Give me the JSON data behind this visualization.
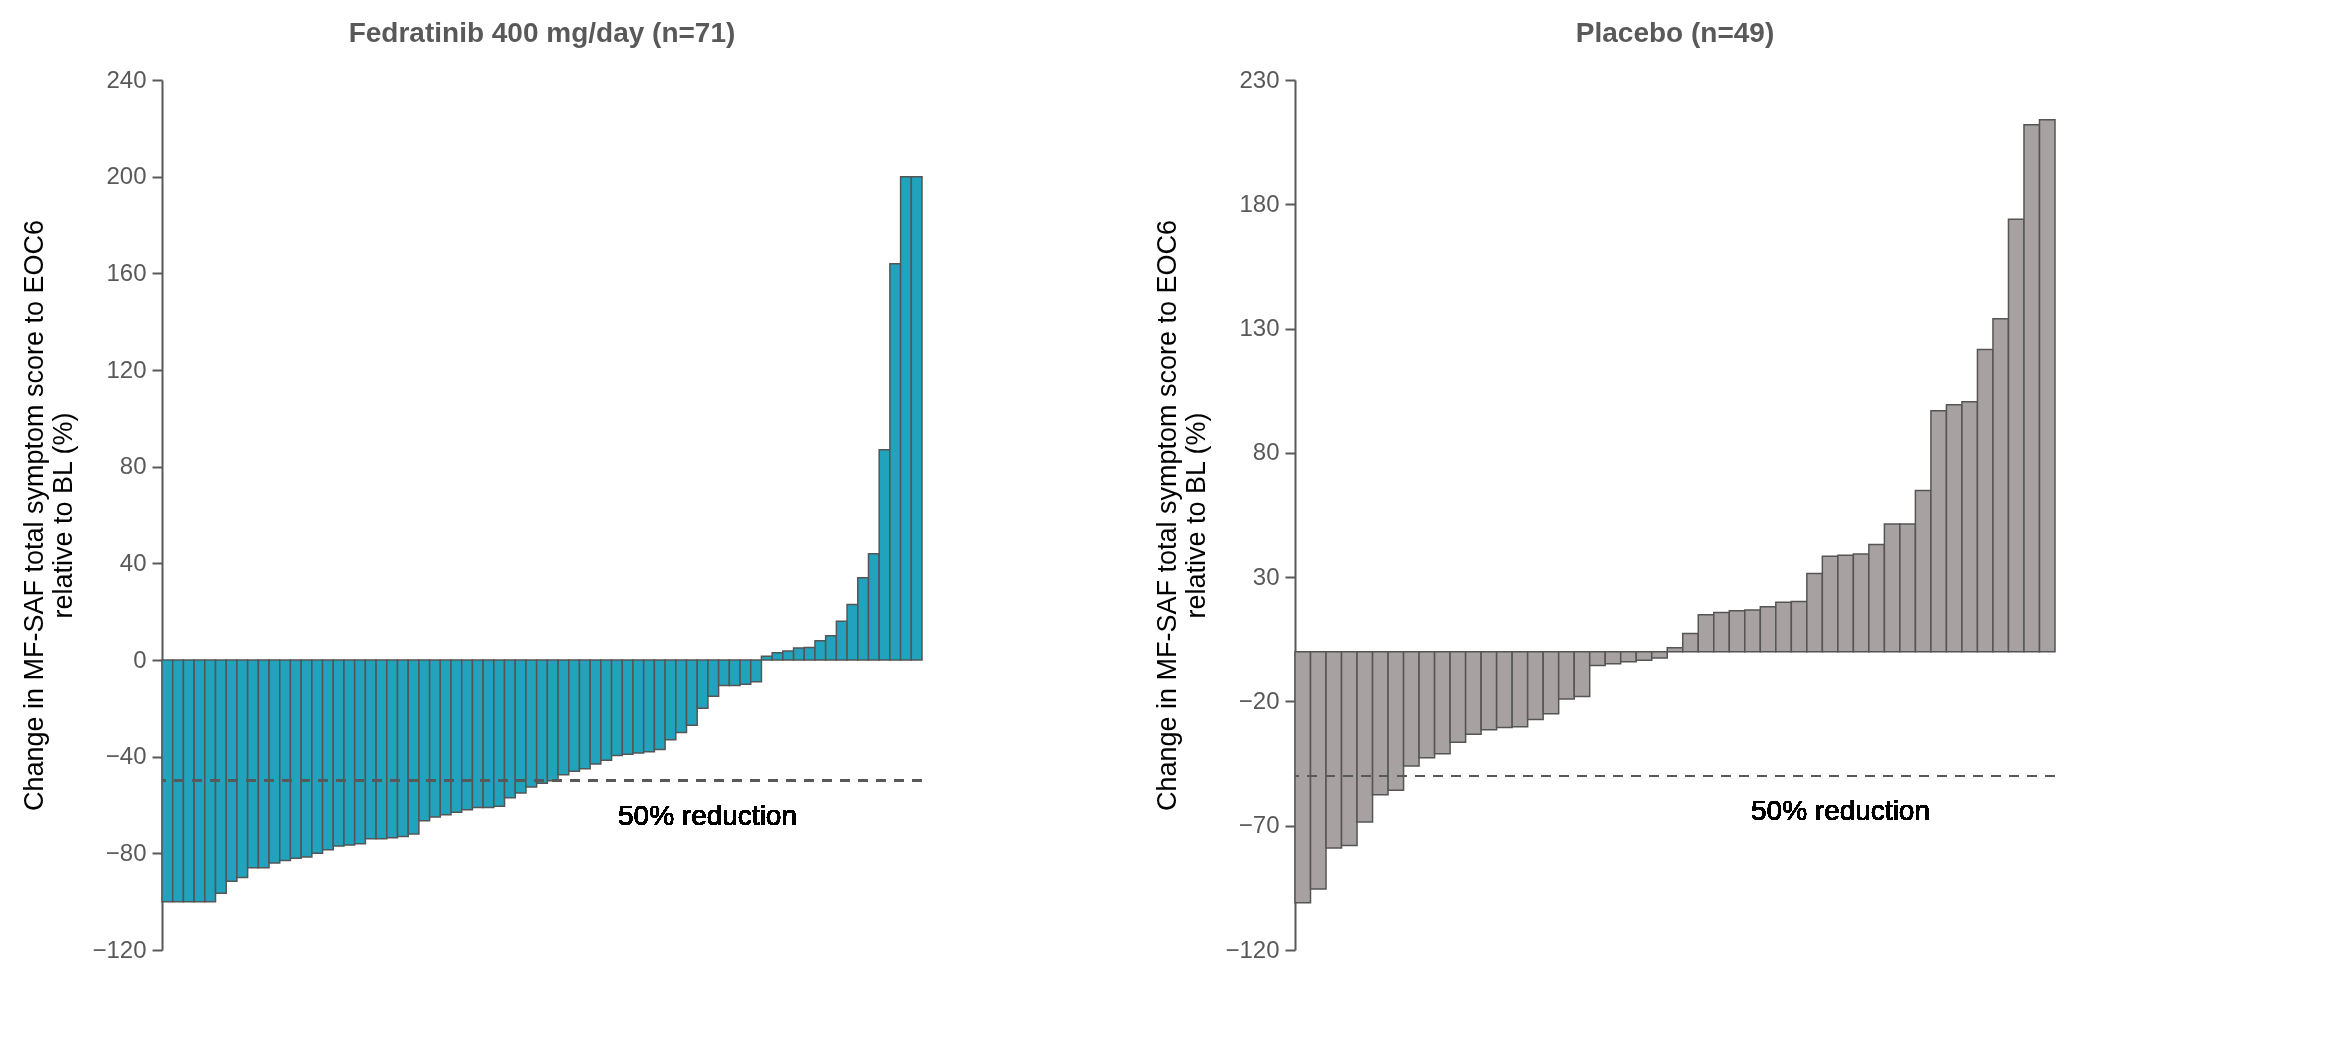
{
  "chart_data": [
    {
      "type": "bar",
      "title": "Fedratinib 400 mg/day (n=71)",
      "ylabel": "Change in MF-SAF total symptom score to EOC6 relative to BL (%)",
      "color": "#22a3bd",
      "categories": [
        null,
        null,
        null,
        null,
        null,
        null,
        null,
        null,
        null,
        null,
        null,
        null,
        null,
        null,
        null,
        null,
        null,
        null,
        null,
        null,
        null,
        null,
        null,
        null,
        null,
        null,
        null,
        null,
        null,
        null,
        null,
        null,
        null,
        null,
        null,
        null,
        null,
        null,
        null,
        null,
        null,
        null,
        null,
        null,
        null,
        null,
        null,
        null,
        null,
        null,
        null,
        null,
        null,
        null,
        null,
        null,
        null,
        null,
        null,
        null,
        null,
        null,
        null,
        null,
        null,
        null,
        null,
        null,
        null,
        null,
        null
      ],
      "values": [
        -100,
        -100,
        -100,
        -100,
        -100,
        -96.5,
        -91.5,
        -90,
        -86,
        -86,
        -84,
        -83,
        -82,
        -81.5,
        -80,
        -78.5,
        -77,
        -76.5,
        -76,
        -74,
        -74,
        -73.5,
        -73,
        -72,
        -66.5,
        -65,
        -64,
        -63,
        -62,
        -61,
        -61,
        -60.5,
        -57,
        -55,
        -52.5,
        -51,
        -50,
        -47.5,
        -46,
        -45,
        -43,
        -41.5,
        -39.5,
        -39,
        -38.5,
        -38,
        -37,
        -33,
        -30,
        -27,
        -20,
        -15,
        -10.5,
        -10.5,
        -10,
        -9,
        1.6,
        3,
        3.7,
        5,
        5.2,
        8,
        10,
        16,
        23,
        34,
        44,
        87,
        164,
        200,
        200
      ],
      "ylim": [
        -120,
        240
      ],
      "yticks": [
        -120,
        -80,
        -40,
        0,
        40,
        80,
        120,
        160,
        200,
        240
      ],
      "grid": false,
      "ref_lines": [
        {
          "axis": "y",
          "value": -50,
          "label": "50% reduction",
          "line_style": "dashed",
          "color": "#595959"
        }
      ]
    },
    {
      "type": "bar",
      "title": "Placebo (n=49)",
      "ylabel": "Change in MF-SAF total symptom score to EOC6 relative to BL (%)",
      "color": "#a8a1a1",
      "categories": [
        null,
        null,
        null,
        null,
        null,
        null,
        null,
        null,
        null,
        null,
        null,
        null,
        null,
        null,
        null,
        null,
        null,
        null,
        null,
        null,
        null,
        null,
        null,
        null,
        null,
        null,
        null,
        null,
        null,
        null,
        null,
        null,
        null,
        null,
        null,
        null,
        null,
        null,
        null,
        null,
        null,
        null,
        null,
        null,
        null,
        null,
        null,
        null,
        null
      ],
      "values": [
        -101,
        -95.5,
        -79,
        -78,
        -68.5,
        -57.5,
        -55.7,
        -46,
        -42.7,
        -41,
        -36.4,
        -33.2,
        -31.4,
        -30.5,
        -30.2,
        -27.3,
        -25,
        -19,
        -18,
        -5.5,
        -4.8,
        -4,
        -3.4,
        -2.5,
        1.6,
        7.3,
        14.9,
        15.8,
        16.5,
        16.8,
        18.1,
        19.9,
        20.2,
        31.5,
        38.4,
        38.8,
        39.3,
        43.1,
        51.4,
        51.4,
        64.9,
        96.9,
        99.4,
        100.6,
        121.6,
        134,
        174,
        212,
        214
      ],
      "ylim": [
        -120,
        230
      ],
      "yticks": [
        -120,
        -70,
        -20,
        30,
        80,
        130,
        180,
        230
      ],
      "grid": false,
      "ref_lines": [
        {
          "axis": "y",
          "value": -50,
          "label": "50% reduction",
          "line_style": "dashed",
          "color": "#595959"
        }
      ]
    }
  ]
}
